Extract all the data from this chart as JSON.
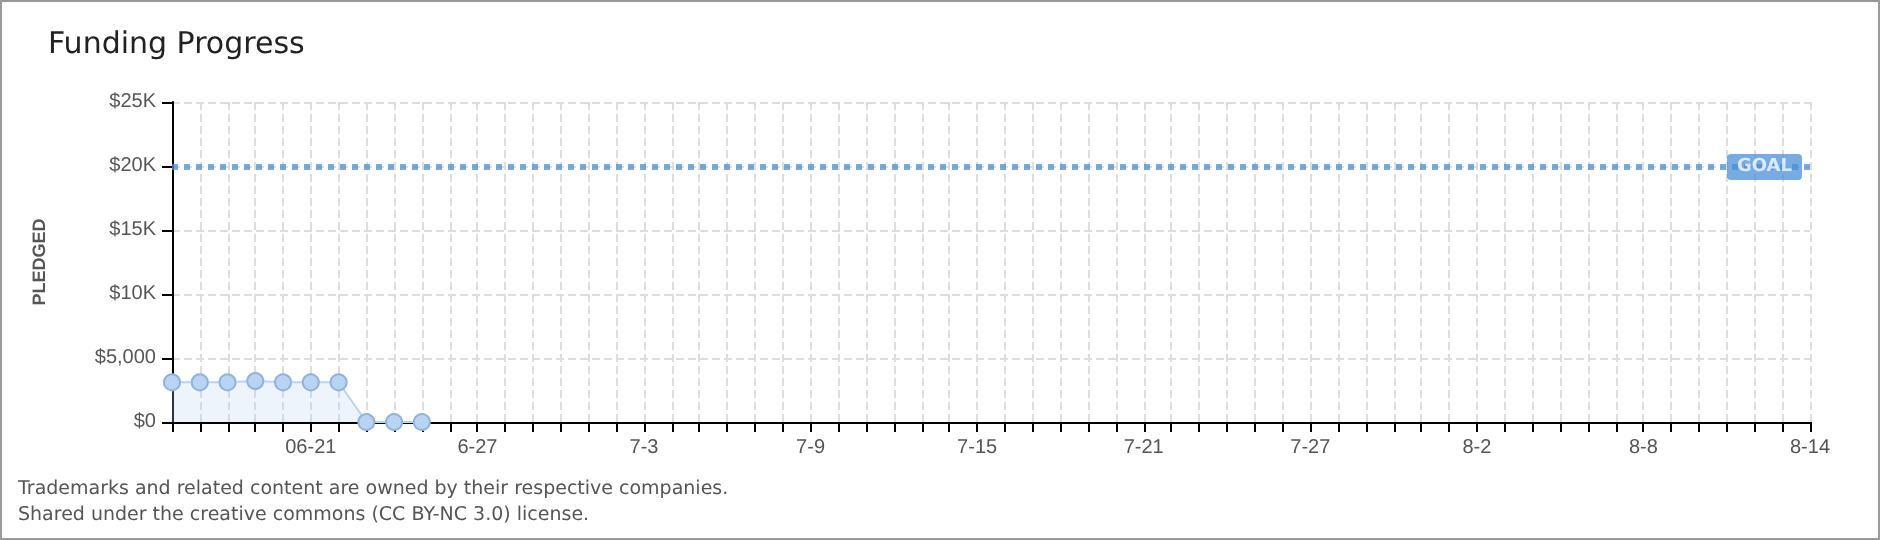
{
  "chart_data": {
    "type": "area",
    "title": "Funding Progress",
    "ylabel": "PLEDGED",
    "x": [
      "--06-16",
      "--06-17",
      "--06-18",
      "--06-19",
      "--06-20",
      "--06-21",
      "--06-22",
      "--06-23",
      "--06-24",
      "--06-25"
    ],
    "series": [
      {
        "color": "#b8d4f2",
        "values": [
          3100,
          3100,
          3100,
          3200,
          3100,
          3100,
          3100,
          0,
          0,
          0
        ]
      }
    ],
    "xlim": [
      "--06-16",
      "--08-14"
    ],
    "xticks": [
      {
        "value": "--06-16",
        "label": null
      },
      {
        "value": "--06-17",
        "label": null
      },
      {
        "value": "--06-18",
        "label": null
      },
      {
        "value": "--06-19",
        "label": null
      },
      {
        "value": "--06-20",
        "label": null
      },
      {
        "value": "--06-21",
        "label": "06-21"
      },
      {
        "value": "--06-22",
        "label": null
      },
      {
        "value": "--06-23",
        "label": null
      },
      {
        "value": "--06-24",
        "label": null
      },
      {
        "value": "--06-25",
        "label": null
      },
      {
        "value": "--06-26",
        "label": null
      },
      {
        "value": "--06-27",
        "label": "6-27"
      },
      {
        "value": "--06-28",
        "label": null
      },
      {
        "value": "--06-29",
        "label": null
      },
      {
        "value": "--06-30",
        "label": null
      },
      {
        "value": "--07-01",
        "label": null
      },
      {
        "value": "--07-02",
        "label": null
      },
      {
        "value": "--07-03",
        "label": "7-3"
      },
      {
        "value": "--07-04",
        "label": null
      },
      {
        "value": "--07-05",
        "label": null
      },
      {
        "value": "--07-06",
        "label": null
      },
      {
        "value": "--07-07",
        "label": null
      },
      {
        "value": "--07-08",
        "label": null
      },
      {
        "value": "--07-09",
        "label": "7-9"
      },
      {
        "value": "--07-10",
        "label": null
      },
      {
        "value": "--07-11",
        "label": null
      },
      {
        "value": "--07-12",
        "label": null
      },
      {
        "value": "--07-13",
        "label": null
      },
      {
        "value": "--07-14",
        "label": null
      },
      {
        "value": "--07-15",
        "label": "7-15"
      },
      {
        "value": "--07-16",
        "label": null
      },
      {
        "value": "--07-17",
        "label": null
      },
      {
        "value": "--07-18",
        "label": null
      },
      {
        "value": "--07-19",
        "label": null
      },
      {
        "value": "--07-20",
        "label": null
      },
      {
        "value": "--07-21",
        "label": "7-21"
      },
      {
        "value": "--07-22",
        "label": null
      },
      {
        "value": "--07-23",
        "label": null
      },
      {
        "value": "--07-24",
        "label": null
      },
      {
        "value": "--07-25",
        "label": null
      },
      {
        "value": "--07-26",
        "label": null
      },
      {
        "value": "--07-27",
        "label": "7-27"
      },
      {
        "value": "--07-28",
        "label": null
      },
      {
        "value": "--07-29",
        "label": null
      },
      {
        "value": "--07-30",
        "label": null
      },
      {
        "value": "--07-31",
        "label": null
      },
      {
        "value": "--08-01",
        "label": null
      },
      {
        "value": "--08-02",
        "label": "8-2"
      },
      {
        "value": "--08-03",
        "label": null
      },
      {
        "value": "--08-04",
        "label": null
      },
      {
        "value": "--08-05",
        "label": null
      },
      {
        "value": "--08-06",
        "label": null
      },
      {
        "value": "--08-07",
        "label": null
      },
      {
        "value": "--08-08",
        "label": "8-8"
      },
      {
        "value": "--08-09",
        "label": null
      },
      {
        "value": "--08-10",
        "label": null
      },
      {
        "value": "--08-11",
        "label": null
      },
      {
        "value": "--08-12",
        "label": null
      },
      {
        "value": "--08-13",
        "label": null
      },
      {
        "value": "--08-14",
        "label": "8-14"
      }
    ],
    "ylim": [
      0,
      25000
    ],
    "yticks": [
      {
        "value": 0,
        "label": "$0"
      },
      {
        "value": 5000,
        "label": "$5,000"
      },
      {
        "value": 10000,
        "label": "$10K"
      },
      {
        "value": 15000,
        "label": "$15K"
      },
      {
        "value": 20000,
        "label": "$20K"
      },
      {
        "value": 25000,
        "label": "$25K"
      }
    ],
    "ref_lines": [
      {
        "axis": "y",
        "value": 20000,
        "label": "GOAL",
        "color": "#4a8fd8",
        "line_style": "dotted"
      }
    ],
    "grid": true,
    "marker": "circle",
    "annotations": [
      "Trademarks and related content are owned by their respective companies.",
      "Shared under the creative commons (CC BY-NC 3.0) license."
    ]
  }
}
